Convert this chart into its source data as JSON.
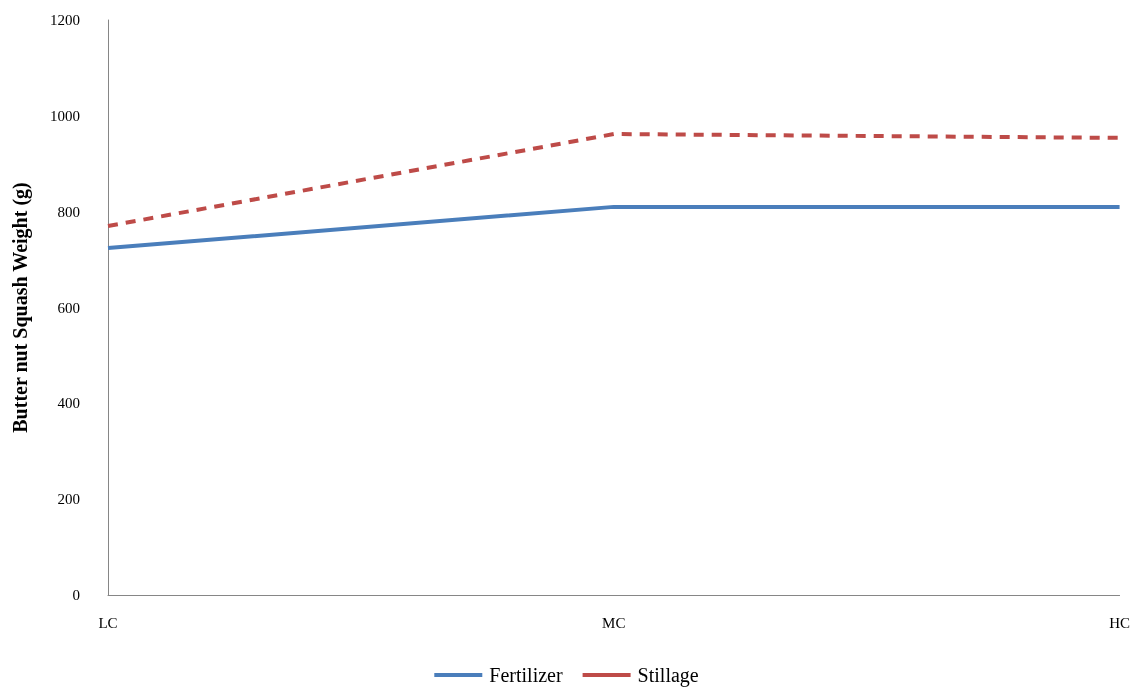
{
  "chart_data": {
    "type": "line",
    "ylabel": "Butter nut Squash Weight (g)",
    "categories": [
      "LC",
      "MC",
      "HC"
    ],
    "series": [
      {
        "name": "Fertilizer",
        "color": "#4a7ebb",
        "values": [
          724,
          810,
          810
        ],
        "line_style": "solid"
      },
      {
        "name": "Stillage",
        "color": "#be4b48",
        "values": [
          770,
          962,
          954
        ],
        "line_style": "dashed"
      }
    ],
    "ylim": [
      0,
      1200
    ],
    "yticks": [
      0,
      200,
      400,
      600,
      800,
      1000,
      1200
    ],
    "grid": false,
    "legend": "bottom",
    "marker": "none"
  }
}
